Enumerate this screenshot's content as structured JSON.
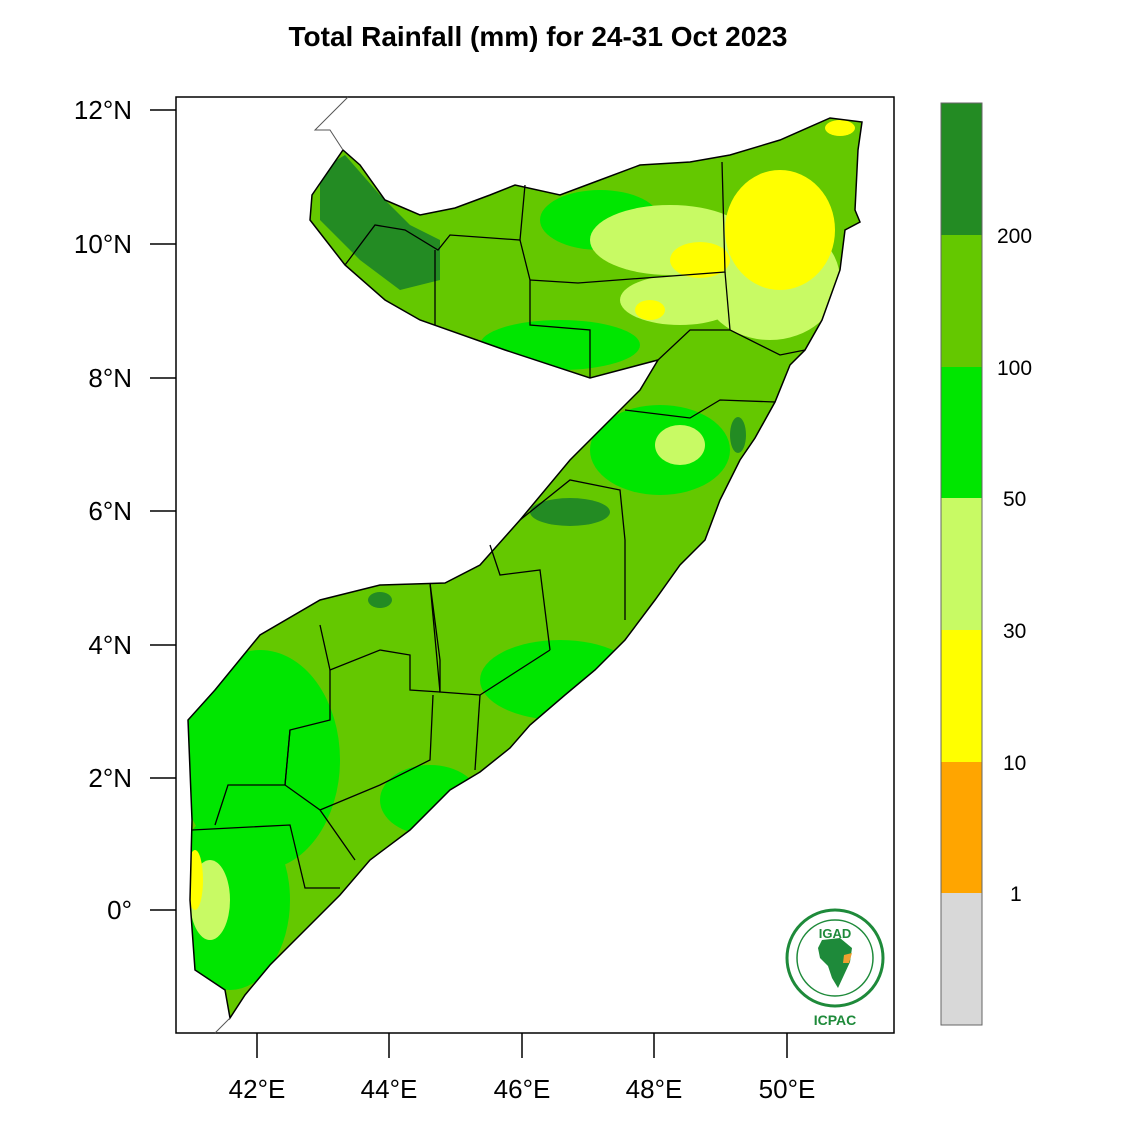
{
  "title": "Total Rainfall (mm) for 24-31 Oct 2023",
  "map": {
    "region": "Somalia",
    "lon_range": [
      40.8,
      51.6
    ],
    "lat_range": [
      -1.8,
      12.2
    ]
  },
  "axes": {
    "y_ticks": [
      {
        "value": 12,
        "label": "12°N"
      },
      {
        "value": 10,
        "label": "10°N"
      },
      {
        "value": 8,
        "label": "8°N"
      },
      {
        "value": 6,
        "label": "6°N"
      },
      {
        "value": 4,
        "label": "4°N"
      },
      {
        "value": 2,
        "label": "2°N"
      },
      {
        "value": 0,
        "label": "0°"
      }
    ],
    "x_ticks": [
      {
        "value": 42,
        "label": "42°E"
      },
      {
        "value": 44,
        "label": "44°E"
      },
      {
        "value": 46,
        "label": "46°E"
      },
      {
        "value": 48,
        "label": "48°E"
      },
      {
        "value": 50,
        "label": "50°E"
      }
    ]
  },
  "legend": {
    "bins": [
      {
        "range": "<1",
        "color": "#d8d8d8"
      },
      {
        "range": "1-10",
        "color": "#ffa500"
      },
      {
        "range": "10-30",
        "color": "#ffff00"
      },
      {
        "range": "30-50",
        "color": "#c8fa64"
      },
      {
        "range": "50-100",
        "color": "#00e600"
      },
      {
        "range": "100-200",
        "color": "#64c800"
      },
      {
        "range": ">200",
        "color": "#238b23"
      }
    ],
    "labels": [
      "1",
      "10",
      "30",
      "50",
      "100",
      "200"
    ]
  },
  "rainfall_zones": [
    {
      "area": "northwest coast (Awdal/Woqooyi Galbeed)",
      "class": ">200"
    },
    {
      "area": "northeast (Bari/Sanaag east)",
      "class": "10-30"
    },
    {
      "area": "central and south interior",
      "class": "100-200"
    },
    {
      "area": "southern Juba / coastal fringe",
      "class": "50-100"
    }
  ],
  "logo": {
    "top_text": "IGAD",
    "bottom_text": "ICPAC"
  }
}
